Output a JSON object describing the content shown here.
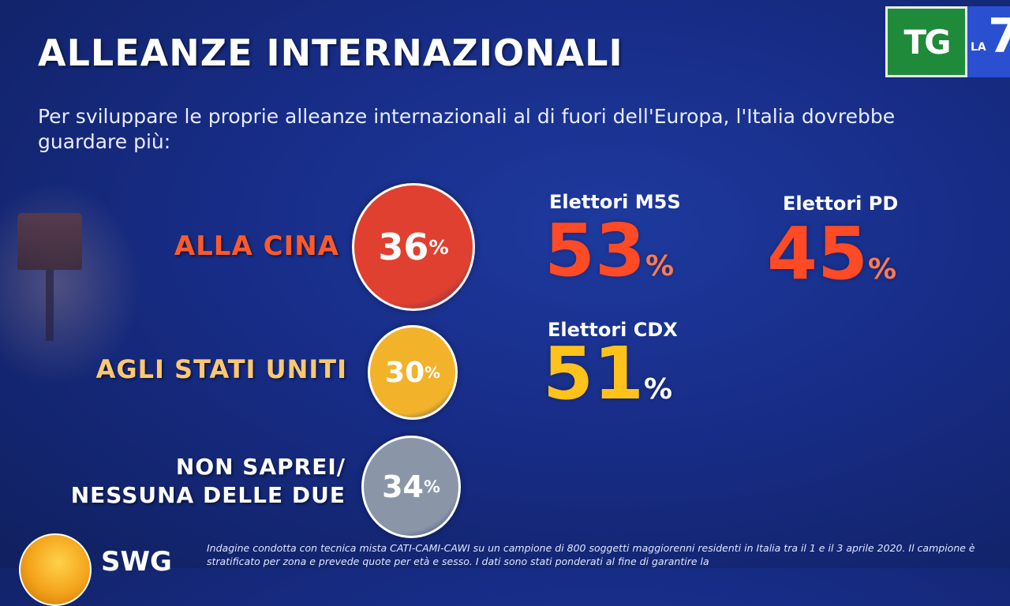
{
  "title": "ALLEANZE INTERNAZIONALI",
  "subtitle": "Per sviluppare le proprie alleanze internazionali al di fuori dell'Europa, l'Italia dovrebbe guardare più:",
  "logo": {
    "tg": "TG",
    "la": "LA",
    "seven": "7"
  },
  "pct_symbol": "%",
  "chart_data": {
    "type": "table",
    "title": "ALLEANZE INTERNAZIONALI",
    "categories": [
      "ALLA CINA",
      "AGLI STATI UNITI",
      "NON SAPREI/ NESSUNA DELLE DUE"
    ],
    "values": [
      36,
      30,
      34
    ],
    "colors": [
      "#e0402f",
      "#f2b32a",
      "#8a96a8"
    ],
    "breakdowns": [
      {
        "category": "ALLA CINA",
        "group": "Elettori M5S",
        "value": 53,
        "color": "#ff4a26"
      },
      {
        "category": "ALLA CINA",
        "group": "Elettori PD",
        "value": 45,
        "color": "#ff4a26"
      },
      {
        "category": "AGLI STATI UNITI",
        "group": "Elettori CDX",
        "value": 51,
        "color": "#ffc21a"
      }
    ]
  },
  "rows": [
    {
      "label_lines": [
        "ALLA CINA"
      ],
      "value": "36",
      "color": "#e0402f",
      "label_color": "#ff5a2a"
    },
    {
      "label_lines": [
        "AGLI STATI UNITI"
      ],
      "value": "30",
      "color": "#f2b32a",
      "label_color": "#ffc870"
    },
    {
      "label_lines": [
        "NON SAPREI/",
        "NESSUNA DELLE DUE"
      ],
      "value": "34",
      "color": "#8a96a8",
      "label_color": "#ffffff"
    }
  ],
  "breakdowns": [
    {
      "label": "Elettori M5S",
      "value": "53"
    },
    {
      "label": "Elettori PD",
      "value": "45"
    },
    {
      "label": "Elettori CDX",
      "value": "51"
    }
  ],
  "source": {
    "logo_text": "SWG",
    "footnote": "Indagine condotta con tecnica mista CATI-CAMI-CAWI su un campione di 800 soggetti maggiorenni residenti in Italia tra il 1 e il 3 aprile 2020. Il campione è stratificato per zona e prevede quote per età e sesso. I dati sono stati ponderati al fine di garantire la"
  }
}
